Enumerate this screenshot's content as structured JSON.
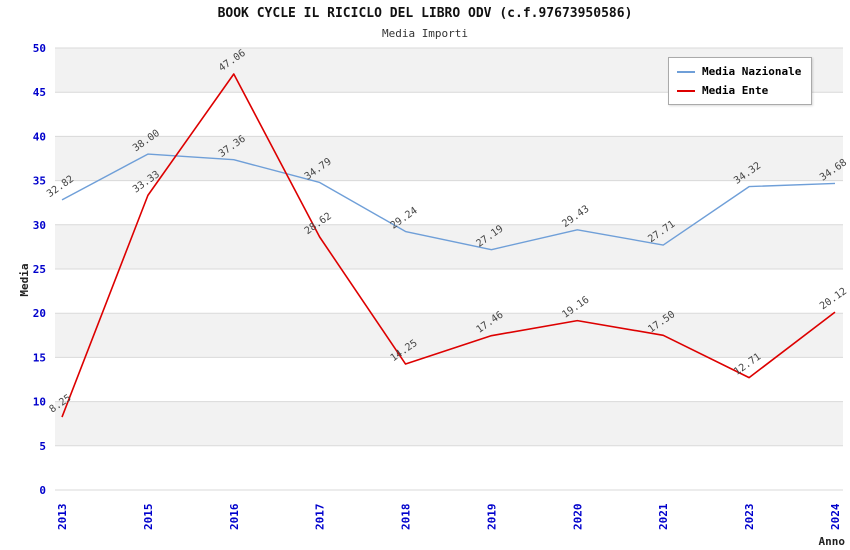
{
  "chart_data": {
    "type": "line",
    "title": "BOOK CYCLE IL RICICLO DEL LIBRO ODV (c.f.97673950586)",
    "subtitle": "Media Importi",
    "xlabel": "Anno",
    "ylabel": "Media",
    "ylim": [
      0,
      50
    ],
    "ytick_step": 5,
    "grid": "horizontal",
    "legend_position": "top-right",
    "categories": [
      "2013",
      "2015",
      "2016",
      "2017",
      "2018",
      "2019",
      "2020",
      "2021",
      "2023",
      "2024"
    ],
    "series": [
      {
        "name": "Media Nazionale",
        "color": "#6f9fd8",
        "values": [
          32.82,
          38.0,
          37.36,
          34.79,
          29.24,
          27.19,
          29.43,
          27.71,
          34.32,
          34.68
        ]
      },
      {
        "name": "Media Ente",
        "color": "#dd0000",
        "values": [
          8.25,
          33.33,
          47.06,
          28.62,
          14.25,
          17.46,
          19.16,
          17.5,
          12.71,
          20.12
        ]
      }
    ],
    "colors": {
      "tick_label": "#0000cc",
      "axis_title": "#222222",
      "data_label": "#444444",
      "grid_line": "#d9d9d9",
      "band": "#f2f2f2"
    }
  }
}
